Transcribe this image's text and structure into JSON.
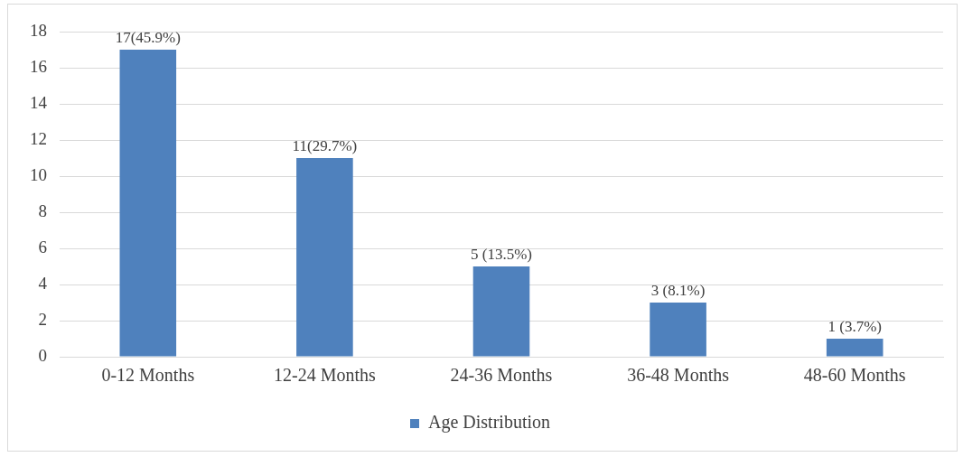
{
  "chart_data": {
    "type": "bar",
    "categories": [
      "0-12 Months",
      "12-24 Months",
      "24-36 Months",
      "36-48 Months",
      "48-60 Months"
    ],
    "series": [
      {
        "name": "Age Distribution",
        "color": "#4f81bd",
        "values": [
          17,
          11,
          5,
          3,
          1
        ],
        "value_labels": [
          "17(45.9%)",
          "11(29.7%)",
          "5 (13.5%)",
          "3 (8.1%)",
          "1 (3.7%)"
        ]
      }
    ],
    "ylim": [
      0,
      18
    ],
    "yticks": [
      0,
      2,
      4,
      6,
      8,
      10,
      12,
      14,
      16,
      18
    ],
    "grid": "y",
    "legend": "bottom"
  }
}
